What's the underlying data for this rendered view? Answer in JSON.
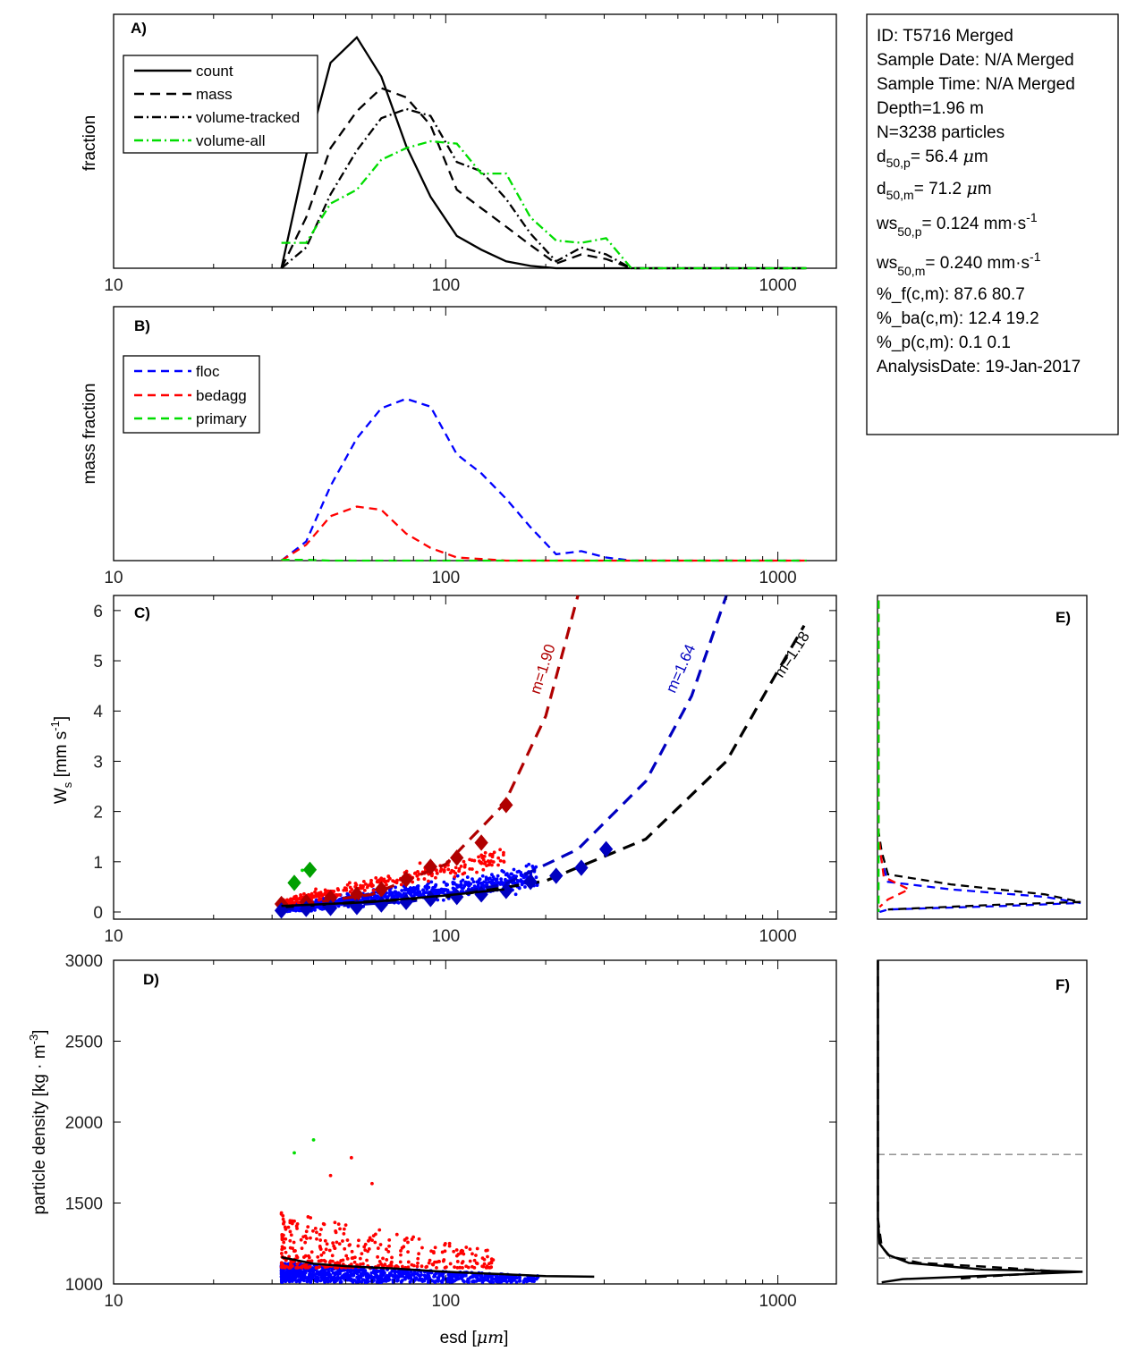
{
  "info_box": {
    "lines": [
      "ID: T5716 Merged",
      "Sample Date: N/A Merged",
      "Sample Time: N/A Merged",
      "Depth=1.96 m",
      "N=3238 particles",
      "d50,p=  56.4 μm",
      "d50,m=  71.2 μm",
      "ws50,p= 0.124 mm·s-1",
      "ws50,m= 0.240 mm·s-1",
      "%_f(c,m): 87.6 80.7",
      "%_ba(c,m): 12.4 19.2",
      "%_p(c,m): 0.1 0.1",
      "AnalysisDate: 19-Jan-2017"
    ]
  },
  "colors": {
    "black": "#000000",
    "floc": "#0000ff",
    "bedagg": "#ff0000",
    "primary": "#00dd00",
    "dark_red": "#b00000",
    "dark_blue": "#0000c0",
    "green_marker": "#00a000",
    "gray_dash": "#888888"
  },
  "chart_data": [
    {
      "panel": "A)",
      "type": "line",
      "ylabel": "fraction",
      "xscale": "log",
      "xlim": [
        10,
        1500
      ],
      "ylim": [
        0,
        1.1
      ],
      "xticks": [
        "10",
        "100",
        "1000"
      ],
      "legend_position": "top-left",
      "series": [
        {
          "name": "count",
          "style": "solid",
          "color": "#000000",
          "x": [
            32,
            38,
            45,
            54,
            64,
            76,
            90,
            108,
            128,
            152,
            180,
            215,
            256,
            304,
            362,
            430,
            512,
            610,
            725,
            860,
            1025,
            1220
          ],
          "y": [
            0,
            0.49,
            0.89,
            1.0,
            0.83,
            0.53,
            0.31,
            0.14,
            0.08,
            0.03,
            0.01,
            0,
            0,
            0,
            0,
            0,
            0,
            0,
            0,
            0,
            0,
            0
          ]
        },
        {
          "name": "mass",
          "style": "dashed",
          "color": "#000000",
          "x": [
            32,
            38,
            45,
            54,
            64,
            76,
            90,
            108,
            128,
            152,
            180,
            215,
            256,
            304,
            362,
            430,
            512,
            610,
            725,
            860,
            1025,
            1220
          ],
          "y": [
            0,
            0.22,
            0.52,
            0.68,
            0.78,
            0.74,
            0.62,
            0.34,
            0.26,
            0.18,
            0.1,
            0.02,
            0.06,
            0.04,
            0,
            0,
            0,
            0,
            0,
            0,
            0,
            0
          ]
        },
        {
          "name": "volume-tracked",
          "style": "dashdot",
          "color": "#000000",
          "x": [
            32,
            38,
            45,
            54,
            64,
            76,
            90,
            108,
            128,
            152,
            180,
            215,
            256,
            304,
            362,
            430,
            512,
            610,
            725,
            860,
            1025,
            1220
          ],
          "y": [
            0,
            0.09,
            0.32,
            0.51,
            0.65,
            0.69,
            0.66,
            0.46,
            0.42,
            0.3,
            0.15,
            0.03,
            0.09,
            0.06,
            0,
            0,
            0,
            0,
            0,
            0,
            0,
            0
          ]
        },
        {
          "name": "volume-all",
          "style": "dashdot",
          "color": "#00dd00",
          "x": [
            32,
            38,
            45,
            54,
            64,
            76,
            90,
            108,
            128,
            152,
            180,
            215,
            256,
            304,
            362,
            430,
            512,
            610,
            725,
            860,
            1025,
            1220
          ],
          "y": [
            0.11,
            0.11,
            0.28,
            0.34,
            0.47,
            0.52,
            0.55,
            0.54,
            0.41,
            0.41,
            0.22,
            0.12,
            0.11,
            0.13,
            0,
            0,
            0,
            0,
            0,
            0,
            0,
            0
          ]
        }
      ]
    },
    {
      "panel": "B)",
      "type": "line",
      "ylabel": "mass fraction",
      "xscale": "log",
      "xlim": [
        10,
        1500
      ],
      "ylim": [
        0,
        1.6
      ],
      "xticks": [
        "10",
        "100",
        "1000"
      ],
      "legend_position": "top-left",
      "series": [
        {
          "name": "floc",
          "style": "dashed",
          "color": "#0000ff",
          "x": [
            32,
            38,
            45,
            54,
            64,
            76,
            90,
            108,
            128,
            152,
            180,
            215,
            256,
            304,
            362,
            430,
            512,
            610,
            725,
            860,
            1025,
            1220
          ],
          "y": [
            0,
            0.12,
            0.47,
            0.77,
            0.96,
            1.02,
            0.97,
            0.67,
            0.55,
            0.39,
            0.21,
            0.04,
            0.06,
            0.02,
            0,
            0,
            0,
            0,
            0,
            0,
            0,
            0
          ]
        },
        {
          "name": "bedagg",
          "style": "dashed",
          "color": "#ff0000",
          "x": [
            32,
            38,
            45,
            54,
            64,
            76,
            90,
            108,
            128,
            152,
            180,
            215,
            256,
            304,
            362,
            430,
            512,
            610,
            725,
            860,
            1025,
            1220
          ],
          "y": [
            0,
            0.1,
            0.28,
            0.34,
            0.32,
            0.17,
            0.08,
            0.02,
            0.01,
            0,
            0,
            0,
            0,
            0,
            0,
            0,
            0,
            0,
            0,
            0,
            0,
            0
          ]
        },
        {
          "name": "primary",
          "style": "dashed",
          "color": "#00dd00",
          "x": [
            32,
            38,
            45,
            54,
            64,
            76,
            90,
            108,
            128,
            152,
            180,
            215,
            256,
            304,
            362,
            430,
            512,
            610,
            725,
            860,
            1025,
            1220
          ],
          "y": [
            0.005,
            0.005,
            0,
            0,
            0,
            0,
            0,
            0,
            0,
            0,
            0,
            0,
            0,
            0,
            0,
            0,
            0,
            0,
            0,
            0,
            0,
            0
          ]
        }
      ]
    },
    {
      "panel": "C)",
      "type": "scatter",
      "ylabel": "Ws [mm s-1]",
      "xscale": "log",
      "xlim": [
        10,
        1500
      ],
      "ylim": [
        0,
        6.3
      ],
      "xticks": [
        "10",
        "100",
        "1000"
      ],
      "yticks": [
        "0",
        "1",
        "2",
        "3",
        "4",
        "5",
        "6"
      ],
      "scatter_groups": [
        {
          "group": "floc",
          "color": "#0000ff",
          "x_range": [
            32,
            190
          ],
          "y_center_low": 0.05,
          "y_center_high": 0.7,
          "count": 900
        },
        {
          "group": "bedagg",
          "color": "#ff0000",
          "x_range": [
            32,
            150
          ],
          "y_center_low": 0.18,
          "y_center_high": 1.1,
          "count": 320
        },
        {
          "group": "primary",
          "color": "#00dd00",
          "points": [
            [
              35,
              0.58
            ],
            [
              37,
              0.83
            ]
          ]
        }
      ],
      "fit_curves": [
        {
          "label": "m=1.90",
          "color": "#b00000",
          "x": [
            32,
            60,
            100,
            150,
            200,
            250
          ],
          "y": [
            0.1,
            0.35,
            0.95,
            2.15,
            3.9,
            6.3
          ]
        },
        {
          "label": "m=1.64",
          "color": "#0000c0",
          "x": [
            32,
            80,
            150,
            250,
            400,
            550,
            700
          ],
          "y": [
            0.05,
            0.22,
            0.55,
            1.25,
            2.6,
            4.3,
            6.3
          ]
        },
        {
          "label": "m=1.18",
          "color": "#000000",
          "x": [
            32,
            100,
            200,
            400,
            700,
            1000,
            1200
          ],
          "y": [
            0.1,
            0.3,
            0.62,
            1.45,
            3.0,
            4.8,
            5.7
          ]
        }
      ],
      "binned_means": [
        {
          "color": "#b00000",
          "x": [
            32,
            38,
            45,
            54,
            64,
            76,
            90,
            108,
            128,
            152
          ],
          "y": [
            0.16,
            0.2,
            0.28,
            0.35,
            0.45,
            0.65,
            0.9,
            1.08,
            1.38,
            2.13
          ]
        },
        {
          "color": "#0000c0",
          "x": [
            32,
            38,
            45,
            54,
            64,
            76,
            90,
            108,
            128,
            152,
            180,
            215,
            256,
            304
          ],
          "y": [
            0.03,
            0.06,
            0.08,
            0.1,
            0.15,
            0.2,
            0.26,
            0.3,
            0.35,
            0.42,
            0.6,
            0.72,
            0.88,
            1.25
          ]
        },
        {
          "color": "#00a000",
          "x": [
            35,
            39
          ],
          "y": [
            0.58,
            0.84
          ]
        }
      ]
    },
    {
      "panel": "D)",
      "type": "scatter",
      "ylabel": "particle density [kg · m-3]",
      "xlabel": "esd [μm]",
      "xscale": "log",
      "xlim": [
        10,
        1500
      ],
      "ylim": [
        1000,
        3000
      ],
      "xticks": [
        "10",
        "100",
        "1000"
      ],
      "yticks": [
        "1000",
        "1500",
        "2000",
        "2500",
        "3000"
      ],
      "scatter_groups": [
        {
          "group": "floc",
          "color": "#0000ff",
          "x_range": [
            32,
            190
          ],
          "y_low": 1010,
          "y_high": 1130,
          "count": 1000
        },
        {
          "group": "bedagg",
          "color": "#ff0000",
          "x_range": [
            32,
            140
          ],
          "y_low": 1100,
          "y_high": 1450,
          "count": 350
        },
        {
          "group": "primary",
          "color": "#00dd00",
          "points": [
            [
              35,
              1810
            ],
            [
              40,
              1890
            ]
          ]
        }
      ],
      "mean_curve": {
        "x": [
          32,
          40,
          50,
          70,
          100,
          150,
          200,
          280
        ],
        "y": [
          1165,
          1125,
          1110,
          1095,
          1075,
          1060,
          1048,
          1045
        ]
      }
    },
    {
      "panel": "E)",
      "type": "line",
      "description": "distribution of Ws for each class (rotated)"
    },
    {
      "panel": "F)",
      "type": "line",
      "description": "distribution of density (rotated)",
      "reference_lines": [
        1800,
        1160
      ]
    }
  ],
  "labels": {
    "A": "A)",
    "B": "B)",
    "C": "C)",
    "D": "D)",
    "E": "E)",
    "F": "F)",
    "fraction": "fraction",
    "mass_fraction": "mass fraction",
    "esd": "esd [",
    "esd_unit": "μm",
    "esd_close": "]",
    "particle_density": "particle density [kg · m",
    "particle_density_exp": "-3",
    "particle_density_close": "]"
  },
  "legends": {
    "A": [
      "count",
      "mass",
      "volume-tracked",
      "volume-all"
    ],
    "B": [
      "floc",
      "bedagg",
      "primary"
    ]
  },
  "ticks": {
    "x": [
      "10",
      "100",
      "1000"
    ],
    "c_y": [
      "0",
      "1",
      "2",
      "3",
      "4",
      "5",
      "6"
    ],
    "d_y": [
      "1000",
      "1500",
      "2000",
      "2500",
      "3000"
    ]
  }
}
